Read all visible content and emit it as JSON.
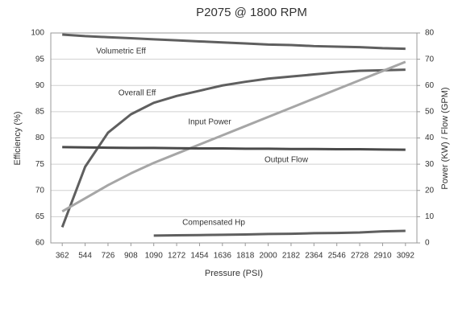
{
  "chart_data": {
    "type": "line",
    "title": "P2075 @ 1800 RPM",
    "x_label": "Pressure (PSI)",
    "y_label": "Efficiency (%)",
    "y2_label": "Power (KW) / Flow (GPM)",
    "x": [
      362,
      544,
      726,
      908,
      1090,
      1272,
      1454,
      1636,
      1818,
      2000,
      2182,
      2364,
      2546,
      2728,
      2910,
      3092
    ],
    "xlim": [
      271,
      3183
    ],
    "xticks": [
      362,
      544,
      726,
      908,
      1090,
      1272,
      1454,
      1636,
      1818,
      2000,
      2182,
      2364,
      2546,
      2728,
      2910,
      3092
    ],
    "ylim": [
      60,
      100
    ],
    "yticks": [
      60,
      65,
      70,
      75,
      80,
      85,
      90,
      95,
      100
    ],
    "y2lim": [
      0,
      80
    ],
    "y2ticks": [
      0,
      10,
      20,
      30,
      40,
      50,
      60,
      70,
      80
    ],
    "grid": true,
    "series": [
      {
        "name": "Volumetric Eff",
        "color": "#5f5f5f",
        "values": [
          99.7,
          99.4,
          99.2,
          99.0,
          98.8,
          98.6,
          98.4,
          98.2,
          98.0,
          97.8,
          97.7,
          97.5,
          97.4,
          97.3,
          97.1,
          97.0
        ]
      },
      {
        "name": "Overall Eff",
        "color": "#5f5f5f",
        "values": [
          63,
          74.5,
          81,
          84.5,
          86.7,
          88,
          89,
          90,
          90.7,
          91.3,
          91.7,
          92.1,
          92.5,
          92.8,
          92.9,
          93.0
        ]
      },
      {
        "name": "Input Power",
        "color": "#a6a6a6",
        "axis": "y2",
        "values": [
          12,
          17,
          22,
          26.5,
          30.5,
          34,
          37.5,
          41,
          44.5,
          48,
          51.5,
          55,
          58.5,
          62,
          65.5,
          69
        ]
      },
      {
        "name": "Output Flow",
        "color": "#4a4a4a",
        "axis": "y2",
        "values": [
          36.5,
          36.4,
          36.3,
          36.2,
          36.2,
          36.1,
          36.0,
          36.0,
          35.9,
          35.9,
          35.8,
          35.8,
          35.7,
          35.7,
          35.6,
          35.5
        ]
      },
      {
        "name": "Compensated Hp",
        "color": "#5f5f5f",
        "axis": "y2",
        "values": [
          null,
          null,
          null,
          null,
          2.8,
          2.9,
          3.0,
          3.1,
          3.2,
          3.4,
          3.5,
          3.7,
          3.8,
          4.0,
          4.4,
          4.6
        ]
      }
    ]
  }
}
